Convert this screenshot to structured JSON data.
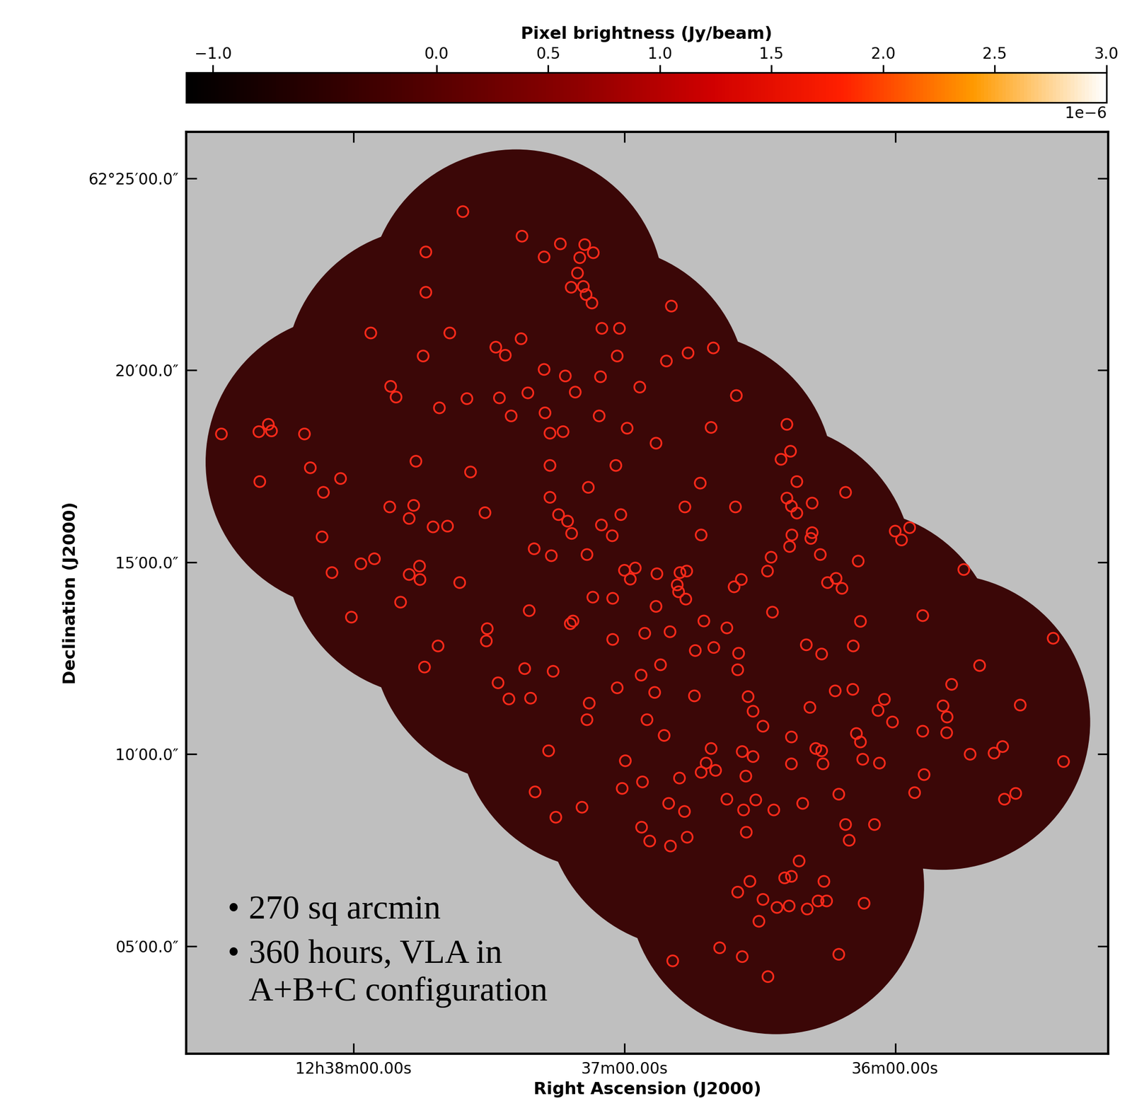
{
  "chart_data": {
    "type": "scatter",
    "x_label": "Right Ascension (J2000)",
    "y_label": "Declination (J2000)",
    "xlim": [
      2317.1,
      2112.8
    ],
    "ylim": [
      2.2,
      26.2
    ],
    "xticks": [
      {
        "value": 2280,
        "label": "12h38m00.00s"
      },
      {
        "value": 2220,
        "label": "37m00.00s"
      },
      {
        "value": 2160,
        "label": "36m00.00s"
      }
    ],
    "yticks": [
      {
        "value": 5,
        "label": "05′00.0″"
      },
      {
        "value": 10,
        "label": "10′00.0″"
      },
      {
        "value": 15,
        "label": "15′00.0″"
      },
      {
        "value": 20,
        "label": "20′00.0″"
      },
      {
        "value": 25,
        "label": "62°25′00.0″"
      }
    ],
    "color": "#ff2a1a",
    "marker": "o",
    "x": [
      2255.8,
      2242.7,
      2264.0,
      2234.2,
      2228.8,
      2226.9,
      2237.8,
      2229.9,
      2230.4,
      2264.0,
      2231.8,
      2229.1,
      2228.5,
      2227.2,
      2209.6,
      2225.0,
      2221.1,
      2276.2,
      2258.7,
      2242.9,
      2248.5,
      2246.4,
      2264.6,
      2221.6,
      2210.7,
      2205.9,
      2200.3,
      2237.8,
      2233.1,
      2225.3,
      2195.2,
      2216.6,
      2271.8,
      2270.6,
      2254.9,
      2247.7,
      2241.4,
      2230.9,
      2261.0,
      2237.6,
      2245.1,
      2225.6,
      2309.3,
      2301.0,
      2298.9,
      2298.2,
      2290.9,
      2236.5,
      2233.6,
      2219.4,
      2200.8,
      2213.0,
      2184.0,
      2183.2,
      2185.3,
      2266.2,
      2289.6,
      2236.5,
      2221.9,
      2254.1,
      2282.9,
      2286.7,
      2203.2,
      2181.8,
      2171.0,
      2228.0,
      2300.8,
      2236.5,
      2206.6,
      2195.4,
      2184.0,
      2183.0,
      2181.8,
      2178.4,
      2272.0,
      2266.7,
      2267.7,
      2250.9,
      2259.2,
      2262.4,
      2234.6,
      2232.6,
      2220.8,
      2225.1,
      2231.7,
      2222.7,
      2203.0,
      2182.9,
      2178.4,
      2183.4,
      2178.7,
      2160.0,
      2156.8,
      2158.6,
      2287.0,
      2240.0,
      2228.3,
      2187.5,
      2176.6,
      2168.2,
      2236.2,
      2144.8,
      2284.8,
      2278.4,
      2275.4,
      2267.7,
      2265.4,
      2265.3,
      2256.5,
      2220.0,
      2218.7,
      2217.6,
      2212.8,
      2207.7,
      2206.2,
      2194.1,
      2195.7,
      2188.3,
      2175.0,
      2173.1,
      2171.8,
      2222.6,
      2208.3,
      2208.0,
      2206.4,
      2227.0,
      2213.0,
      2269.6,
      2187.2,
      2280.5,
      2241.1,
      2231.4,
      2232.0,
      2209.9,
      2202.4,
      2197.3,
      2167.7,
      2153.9,
      2222.6,
      2215.5,
      2250.4,
      2250.6,
      2261.3,
      2204.3,
      2200.2,
      2194.7,
      2179.7,
      2176.3,
      2169.3,
      2125.0,
      2264.3,
      2242.1,
      2212.0,
      2235.8,
      2194.9,
      2248.0,
      2141.3,
      2147.5,
      2216.3,
      2221.6,
      2245.6,
      2240.8,
      2213.3,
      2204.5,
      2192.6,
      2191.5,
      2173.3,
      2169.4,
      2162.4,
      2149.4,
      2148.5,
      2132.3,
      2178.9,
      2163.8,
      2227.8,
      2228.3,
      2215.0,
      2160.6,
      2189.3,
      2168.6,
      2153.9,
      2148.6,
      2211.2,
      2183.0,
      2167.7,
      2143.4,
      2138.1,
      2136.2,
      2122.7,
      2236.8,
      2200.8,
      2193.9,
      2177.6,
      2176.3,
      2191.5,
      2219.8,
      2176.0,
      2167.2,
      2163.5,
      2183.0,
      2201.9,
      2203.0,
      2199.8,
      2193.1,
      2153.6,
      2216.0,
      2207.8,
      2239.8,
      2220.5,
      2172.5,
      2155.7,
      2135.8,
      2133.3,
      2197.3,
      2190.9,
      2180.5,
      2210.2,
      2229.4,
      2193.6,
      2186.9,
      2206.7,
      2235.2,
      2216.2,
      2171.0,
      2164.6,
      2193.0,
      2206.1,
      2214.4,
      2209.8,
      2170.2,
      2181.3,
      2183.0,
      2184.5,
      2175.8,
      2192.2,
      2194.9,
      2189.3,
      2186.2,
      2183.5,
      2179.5,
      2177.1,
      2175.2,
      2166.9,
      2190.2,
      2198.9,
      2193.9,
      2172.5,
      2209.3,
      2188.2
    ],
    "values": [
      24.13,
      23.49,
      23.08,
      23.29,
      23.27,
      23.06,
      22.95,
      22.93,
      22.53,
      22.03,
      22.16,
      22.18,
      21.97,
      21.75,
      21.67,
      21.09,
      21.09,
      20.97,
      20.97,
      20.82,
      20.6,
      20.39,
      20.37,
      20.37,
      20.24,
      20.45,
      20.58,
      20.02,
      19.85,
      19.83,
      19.34,
      19.56,
      19.58,
      19.3,
      19.26,
      19.28,
      19.41,
      19.43,
      19.02,
      18.89,
      18.81,
      18.81,
      18.34,
      18.4,
      18.59,
      18.42,
      18.34,
      18.36,
      18.4,
      18.49,
      18.51,
      18.1,
      18.59,
      17.89,
      17.68,
      17.63,
      17.46,
      17.52,
      17.52,
      17.35,
      17.18,
      16.82,
      17.06,
      17.1,
      16.82,
      16.95,
      17.1,
      16.69,
      16.44,
      16.44,
      16.67,
      16.46,
      16.28,
      16.54,
      16.44,
      16.48,
      16.14,
      16.29,
      15.94,
      15.92,
      16.24,
      16.07,
      16.24,
      15.97,
      15.75,
      15.69,
      15.71,
      15.71,
      15.77,
      15.41,
      15.62,
      15.81,
      15.9,
      15.58,
      15.66,
      15.35,
      15.2,
      15.13,
      15.2,
      15.03,
      15.17,
      14.81,
      14.73,
      14.96,
      15.09,
      14.68,
      14.9,
      14.55,
      14.47,
      14.79,
      14.56,
      14.85,
      14.7,
      14.73,
      14.77,
      14.55,
      14.36,
      14.77,
      14.47,
      14.58,
      14.32,
      14.06,
      14.41,
      14.23,
      14.04,
      14.09,
      13.85,
      13.96,
      13.7,
      13.57,
      13.74,
      13.47,
      13.4,
      13.19,
      13.47,
      13.29,
      13.46,
      13.61,
      12.99,
      13.15,
      13.27,
      12.95,
      12.82,
      12.7,
      12.78,
      12.63,
      12.85,
      12.61,
      12.82,
      13.02,
      12.27,
      12.23,
      12.33,
      12.16,
      12.2,
      11.86,
      12.31,
      11.82,
      12.06,
      11.73,
      11.44,
      11.46,
      11.61,
      11.52,
      11.5,
      11.12,
      11.65,
      11.69,
      11.43,
      11.26,
      10.97,
      11.28,
      11.22,
      11.14,
      11.33,
      10.9,
      10.9,
      10.84,
      10.73,
      10.54,
      10.6,
      10.56,
      10.49,
      10.45,
      10.32,
      10.0,
      10.03,
      10.2,
      9.81,
      10.09,
      10.15,
      10.07,
      10.15,
      10.09,
      9.94,
      9.83,
      9.75,
      9.87,
      9.77,
      9.75,
      9.77,
      9.53,
      9.58,
      9.43,
      9.47,
      9.28,
      9.38,
      9.02,
      9.11,
      8.96,
      9.0,
      8.83,
      8.98,
      8.83,
      8.81,
      8.72,
      8.72,
      8.62,
      8.55,
      8.55,
      8.51,
      8.36,
      8.1,
      8.17,
      8.17,
      7.97,
      7.84,
      7.74,
      7.61,
      7.76,
      7.22,
      6.82,
      6.78,
      6.69,
      6.69,
      6.41,
      6.22,
      6.01,
      6.05,
      5.97,
      6.18,
      6.18,
      6.12,
      5.65,
      4.96,
      4.73,
      4.79,
      4.62,
      4.21
    ],
    "pointings": {
      "x": [
        2244.0,
        2225.6,
        2206.4,
        2188.8,
        2169.6,
        2149.6,
        2280.0,
        2262.4,
        2243.2,
        2224.0,
        2204.8,
        2186.4,
        2246.4,
        2222.4,
        2198.4,
        2182.4,
        2262.4
      ],
      "values": [
        21.9,
        19.4,
        17.14,
        14.79,
        12.53,
        10.84,
        17.61,
        15.35,
        13.1,
        10.84,
        8.78,
        6.56,
        17.61,
        15.54,
        13.1,
        9.9,
        19.87
      ],
      "radius_x": 32.8,
      "radius_y": 3.85
    },
    "colorbar": {
      "label": "Pixel brightness (Jy/beam)",
      "range": [
        -1.12e-06,
        3e-06
      ],
      "ticks": [
        {
          "value": -1e-06,
          "label": "−1.0"
        },
        {
          "value": 0.0,
          "label": "0.0"
        },
        {
          "value": 5e-07,
          "label": "0.5"
        },
        {
          "value": 1e-06,
          "label": "1.0"
        },
        {
          "value": 1.5e-06,
          "label": "1.5"
        },
        {
          "value": 2e-06,
          "label": "2.0"
        },
        {
          "value": 2.5e-06,
          "label": "2.5"
        },
        {
          "value": 3e-06,
          "label": "3.0"
        }
      ],
      "multiplier": "1e−6"
    },
    "annotations": {
      "bullet": "•",
      "items": [
        "270 sq arcmin",
        "360 hours, VLA in\nA+B+C configuration"
      ]
    }
  }
}
